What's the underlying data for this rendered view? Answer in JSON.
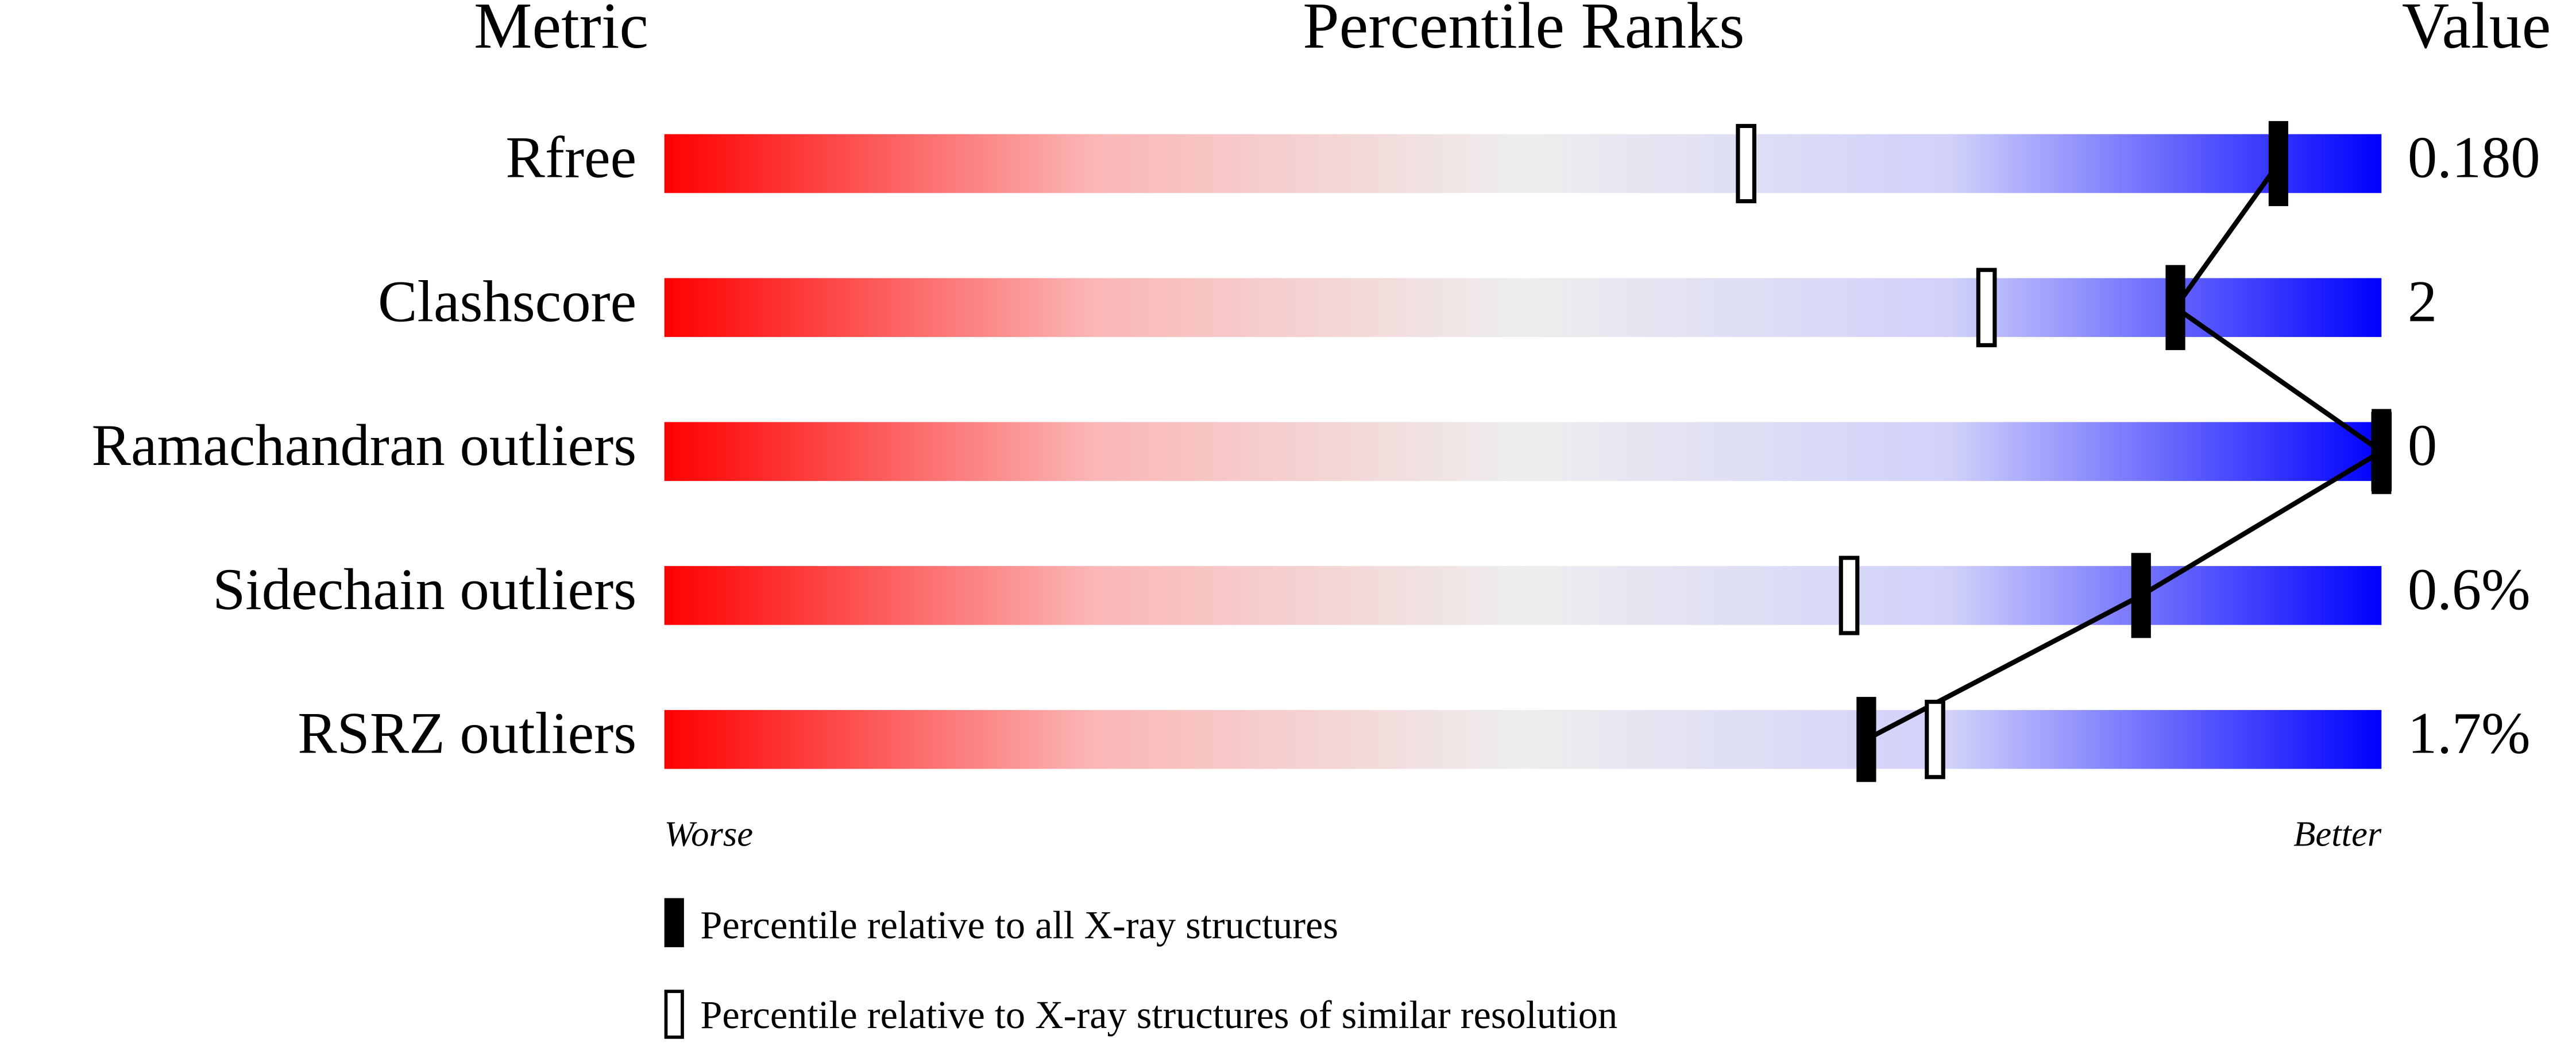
{
  "chart_data": {
    "type": "percentile-slider",
    "headers": [
      "Metric",
      "Percentile Ranks",
      "Value"
    ],
    "categories": [
      "Rfree",
      "Clashscore",
      "Ramachandran outliers",
      "Sidechain outliers",
      "RSRZ outliers"
    ],
    "metric_values": [
      "0.180",
      "2",
      "0",
      "0.6%",
      "1.7%"
    ],
    "series": [
      {
        "name": "Percentile relative to all X-ray structures",
        "color": "#000000",
        "style": "filled",
        "values": [
          94,
          88,
          100,
          86,
          70
        ]
      },
      {
        "name": "Percentile relative to X-ray structures of similar resolution",
        "color": "#000000",
        "style": "open",
        "values": [
          63,
          77,
          100,
          69,
          74
        ]
      }
    ],
    "xlim": [
      0,
      100
    ],
    "worse_label": "Worse",
    "better_label": "Better"
  }
}
